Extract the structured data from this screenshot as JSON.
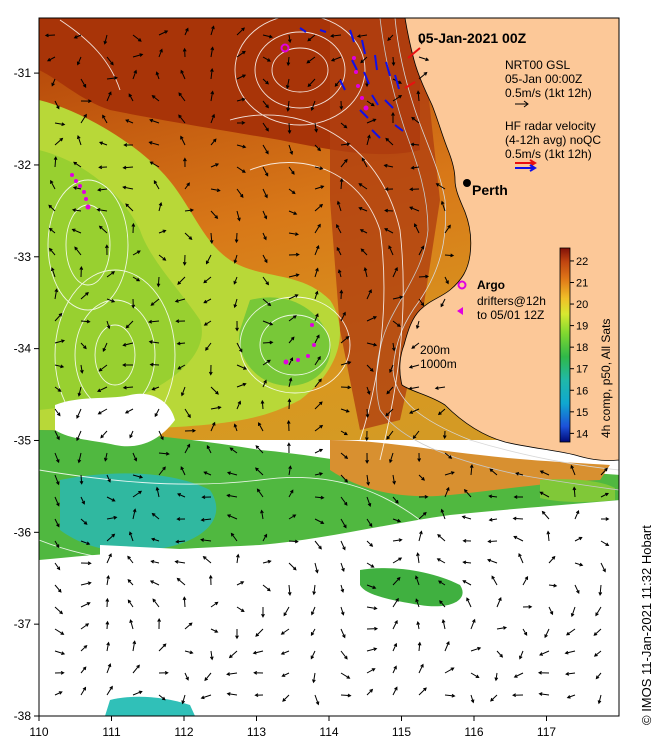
{
  "title": "05-Jan-2021 00Z",
  "place_label": "Perth",
  "legend": {
    "model_line1": "NRT00 GSL",
    "model_line2": "05-Jan 00:00Z",
    "model_line3": "0.5m/s (1kt 12h)",
    "radar_line1": "HF radar velocity",
    "radar_line2": "(4-12h avg) noQC",
    "radar_line3": "0.5m/s (1kt 12h)",
    "argo_label": "Argo",
    "drifters_line1": "drifters@12h",
    "drifters_line2": "to 05/01 12Z",
    "depth_200": "200m",
    "depth_1000": "1000m"
  },
  "colorbar": {
    "label": "4h comp, p50, All Sats",
    "ticks": [
      "22",
      "21",
      "20",
      "19",
      "18",
      "17",
      "16",
      "15",
      "14"
    ],
    "min": 13.6,
    "max": 22.6
  },
  "axes": {
    "x_ticks": [
      "110",
      "111",
      "112",
      "113",
      "114",
      "115",
      "116",
      "117"
    ],
    "y_ticks": [
      "-31",
      "-32",
      "-33",
      "-34",
      "-35",
      "-36",
      "-37",
      "-38"
    ],
    "lon_range": [
      110,
      118
    ],
    "lat_range": [
      -38,
      -30.4
    ]
  },
  "credit": "© IMOS 11-Jan-2021 11:32 Hobart",
  "colors": {
    "land": "#fcc898",
    "warm": "#b83c08",
    "cool": "#2fb8b4",
    "argo": "#e000e0",
    "radar_blue": "#1010e8",
    "radar_red": "#e81010"
  }
}
